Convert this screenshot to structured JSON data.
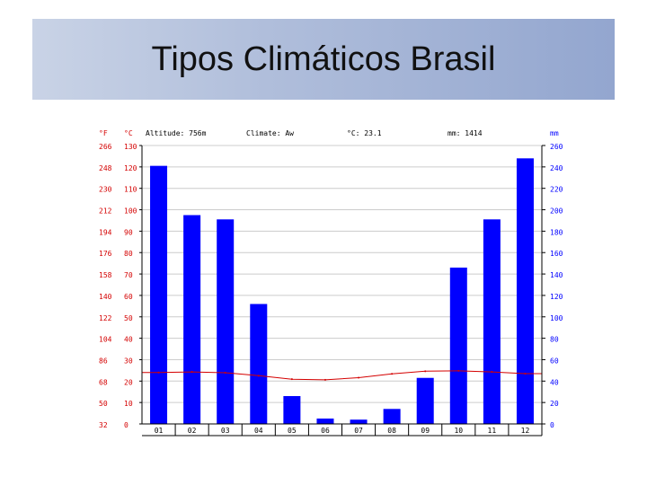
{
  "slide": {
    "title": "Tipos Climáticos Brasil"
  },
  "chart_data": {
    "type": "bar",
    "header": {
      "unit_f": "°F",
      "unit_c": "°C",
      "altitude": "Altitude: 756m",
      "climate": "Climate: Aw",
      "temp_avg": "°C: 23.1",
      "precip_total": "mm: 1414",
      "unit_mm": "mm"
    },
    "categories": [
      "01",
      "02",
      "03",
      "04",
      "05",
      "06",
      "07",
      "08",
      "09",
      "10",
      "11",
      "12"
    ],
    "series": [
      {
        "kind": "precipitation",
        "axis": "mm",
        "values": [
          241,
          195,
          191,
          112,
          26,
          5,
          4,
          14,
          43,
          146,
          191,
          248
        ],
        "color": "#0000ff"
      },
      {
        "kind": "temperature",
        "axis": "c",
        "values": [
          24.0,
          24.3,
          23.9,
          22.5,
          20.9,
          20.6,
          21.6,
          23.4,
          24.6,
          24.8,
          24.3,
          23.5
        ],
        "color": "#d40000"
      }
    ],
    "y_left_f_ticks": [
      "266",
      "248",
      "230",
      "212",
      "194",
      "176",
      "158",
      "140",
      "122",
      "104",
      "86",
      "68",
      "50",
      "32"
    ],
    "y_left_c_ticks": [
      "130",
      "120",
      "110",
      "100",
      "90",
      "80",
      "70",
      "60",
      "50",
      "40",
      "30",
      "20",
      "10",
      "0"
    ],
    "y_right_mm_ticks": [
      "260",
      "240",
      "220",
      "200",
      "180",
      "160",
      "140",
      "120",
      "100",
      "80",
      "60",
      "40",
      "20",
      "0"
    ],
    "ylim_mm": [
      0,
      260
    ],
    "ylim_c": [
      0,
      130
    ],
    "grid": true,
    "colors": {
      "left_axis": "#d40000",
      "right_axis": "#0000ff",
      "grid": "#cccccc"
    }
  }
}
